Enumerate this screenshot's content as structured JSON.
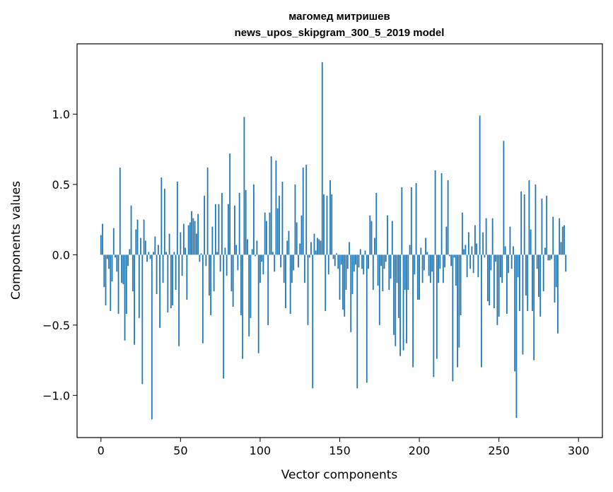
{
  "chart_data": {
    "type": "bar",
    "title_line1": "магомед митришев",
    "title_line2": "news_upos_skipgram_300_5_2019 model",
    "xlabel": "Vector components",
    "ylabel": "Components values",
    "xlim": [
      -15,
      315
    ],
    "ylim": [
      -1.3,
      1.5
    ],
    "xticks": [
      0,
      50,
      100,
      150,
      200,
      250,
      300
    ],
    "yticks": [
      -1.0,
      -0.5,
      0.0,
      0.5,
      1.0
    ],
    "xtick_labels": [
      "0",
      "50",
      "100",
      "150",
      "200",
      "250",
      "300"
    ],
    "ytick_labels": [
      "−1.0",
      "−0.5",
      "0.0",
      "0.5",
      "1.0"
    ],
    "bar_color": "#1f77b4",
    "grid": false,
    "values": [
      0.14,
      0.22,
      -0.23,
      -0.36,
      -0.03,
      -0.1,
      -0.4,
      -0.19,
      0.19,
      -0.02,
      -0.12,
      -0.42,
      0.62,
      -0.2,
      -0.21,
      -0.61,
      -0.42,
      -0.08,
      0.04,
      0.35,
      -0.26,
      -0.64,
      0.18,
      0.25,
      -0.45,
      0.12,
      -0.92,
      0.25,
      0.1,
      -0.05,
      0.02,
      -0.03,
      -1.17,
      0.02,
      0.13,
      -0.28,
      0.07,
      -0.52,
      0.55,
      -0.2,
      0.47,
      0.02,
      -0.41,
      0.15,
      -0.38,
      -0.36,
      0.02,
      -0.25,
      0.52,
      -0.65,
      0.16,
      -0.15,
      0.22,
      0.05,
      -0.32,
      0.21,
      0.23,
      0.31,
      0.26,
      0.24,
      0.15,
      0.29,
      -0.05,
      0.01,
      -0.63,
      0.42,
      -0.08,
      0.62,
      -0.29,
      -0.43,
      0.2,
      -0.26,
      0.36,
      0.02,
      0.36,
      -0.12,
      0.44,
      -0.88,
      0.05,
      -0.15,
      0.36,
      0.72,
      -0.26,
      -0.37,
      0.35,
      0.07,
      -0.11,
      0.44,
      -0.43,
      -0.74,
      0.98,
      0.46,
      0.11,
      -0.58,
      -0.45,
      0.04,
      0.5,
      -0.01,
      0.1,
      -0.7,
      -0.2,
      -0.05,
      -0.14,
      0.3,
      0.24,
      -0.5,
      0.3,
      0.7,
      0.02,
      -0.12,
      0.67,
      0.33,
      0.42,
      -0.09,
      0.52,
      -0.2,
      -0.38,
      0.1,
      0.17,
      -0.42,
      -0.2,
      -0.11,
      0.5,
      0.23,
      -0.09,
      0.08,
      0.28,
      0.62,
      -0.2,
      0.64,
      -0.5,
      -0.02,
      0.09,
      -0.95,
      0.15,
      0.03,
      0.12,
      0.11,
      0.1,
      1.37,
      0.43,
      -0.4,
      0.42,
      -0.14,
      0.53,
      0.43,
      -0.03,
      -0.08,
      0.01,
      -0.1,
      -0.32,
      -0.07,
      -0.39,
      -0.44,
      -0.25,
      -0.1,
      0.09,
      -0.55,
      -0.28,
      -0.12,
      -0.07,
      -0.95,
      -0.09,
      0.04,
      -0.1,
      -0.14,
      0.03,
      -0.91,
      -0.1,
      0.28,
      0.24,
      -0.25,
      0.12,
      0.44,
      -0.22,
      -0.5,
      -0.08,
      -0.26,
      -0.1,
      -0.05,
      0.28,
      -0.25,
      -0.17,
      0.24,
      -0.57,
      -0.65,
      -0.2,
      -0.45,
      -0.72,
      0.48,
      -0.68,
      -0.25,
      -0.63,
      -0.25,
      0.07,
      0.48,
      -0.8,
      -0.14,
      0.51,
      -0.32,
      -0.32,
      0.05,
      -0.2,
      -0.11,
      0.12,
      0.02,
      -0.15,
      -0.2,
      -0.12,
      -0.87,
      0.6,
      -0.74,
      -0.2,
      -0.1,
      0.58,
      -0.2,
      -0.09,
      0.2,
      0.53,
      -0.01,
      -0.08,
      -0.9,
      -0.02,
      -0.22,
      -0.8,
      -0.66,
      -0.43,
      0.3,
      0.04,
      0.07,
      -0.16,
      0.16,
      -0.1,
      0.06,
      -0.13,
      0.21,
      0.08,
      -0.16,
      0.99,
      -0.8,
      0.16,
      -0.02,
      0.26,
      -0.33,
      -0.36,
      -0.11,
      0.26,
      -0.38,
      -0.05,
      -0.5,
      -0.44,
      -0.16,
      -0.2,
      0.81,
      0.06,
      -0.42,
      -0.13,
      0.2,
      -0.1,
      0.06,
      -0.83,
      -1.16,
      -0.16,
      -0.4,
      0.45,
      -0.71,
      0.43,
      -0.29,
      -0.4,
      0.53,
      0.18,
      -0.4,
      -0.75,
      0.5,
      -0.1,
      -0.3,
      -0.44,
      0.4,
      -0.26,
      0.05,
      0.42,
      -0.04,
      -0.04,
      -0.03,
      0.27,
      -0.34,
      -0.23,
      -0.56,
      0.26,
      0.09,
      0.2,
      0.21,
      -0.12
    ]
  }
}
